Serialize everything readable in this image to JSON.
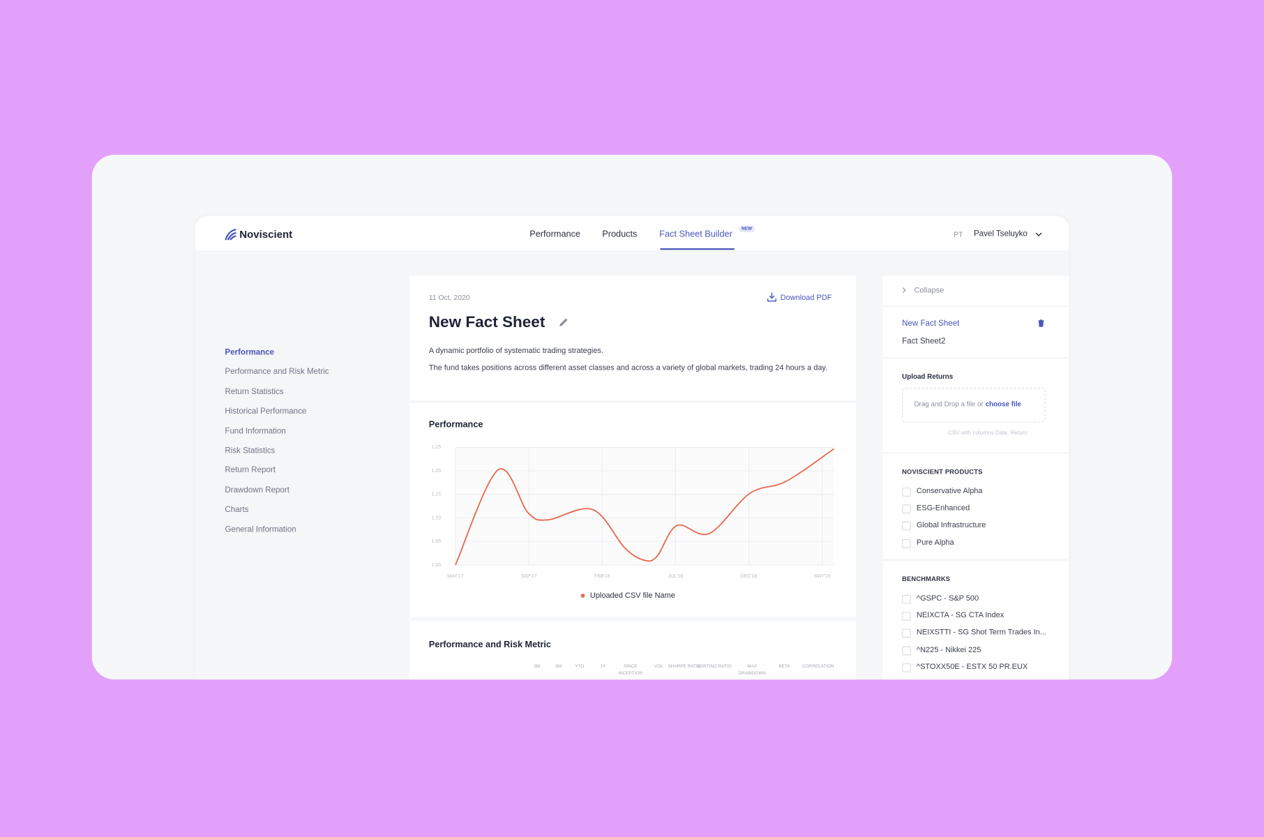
{
  "header": {
    "logo": "Noviscient",
    "nav": [
      "Performance",
      "Products",
      "Fact Sheet Builder"
    ],
    "badge": "NEW",
    "user_initials": "PT",
    "user_name": "Pavel Tseluyko"
  },
  "sidebar": {
    "items": [
      "Performance",
      "Performance and Risk Metric",
      "Return Statistics",
      "Historical Performance",
      "Fund Information",
      "Risk Statistics",
      "Return Report",
      "Drawdown Report",
      "Charts",
      "General Information"
    ]
  },
  "fact_sheet": {
    "date": "11 Oct, 2020",
    "download": "Download PDF",
    "title": "New Fact Sheet",
    "description": [
      "A dynamic portfolio of systematic trading strategies.",
      "The fund takes positions across different asset classes and across a variety of global markets, trading 24 hours a day."
    ]
  },
  "chart_data": {
    "type": "line",
    "title": "Performance",
    "xticks": [
      {
        "value": 0,
        "label": "MAY'17"
      },
      {
        "value": 1,
        "label": "SEP'17"
      },
      {
        "value": 2,
        "label": "FEB'18"
      },
      {
        "value": 3,
        "label": "JUL'18"
      },
      {
        "value": 4,
        "label": "DEC'18"
      },
      {
        "value": 5,
        "label": "MAY'19"
      }
    ],
    "xlim": [
      0,
      5.16
    ],
    "ylim": [
      1,
      1.25
    ],
    "yticks": [
      {
        "value": 1,
        "label": "1.00"
      },
      1.05,
      {
        "value": 1.1,
        "label": "1.10"
      },
      1.15,
      {
        "value": 1.2,
        "label": "1.20"
      },
      1.25
    ],
    "grid": true,
    "series": [
      {
        "name": "Uploaded CSV file Name",
        "color": "#ea6a4f",
        "x": [
          0,
          0.58,
          0.99,
          1.26,
          1.87,
          2.31,
          2.58,
          2.75,
          3.02,
          3.46,
          4.01,
          4.51,
          5.16
        ],
        "values": [
          1.0,
          1.202,
          1.111,
          1.096,
          1.118,
          1.036,
          1.01,
          1.019,
          1.084,
          1.067,
          1.152,
          1.178,
          1.247
        ]
      }
    ]
  },
  "table": {
    "title": "Performance and Risk Metric",
    "columns": [
      "3M",
      "6M",
      "YTD",
      "1Y",
      "SINCE INCEPTION",
      "VOL",
      "SHARPE RATIO",
      "SORTINO RATIO",
      "MAX DRAWDOWN",
      "BETA",
      "CORRELATION"
    ]
  },
  "panel": {
    "collapse": "Collapse",
    "sheets": [
      "New Fact Sheet",
      "Fact Sheet2"
    ],
    "upload": {
      "title": "Upload Returns",
      "drop": "Drag and Drop a file or",
      "link": "choose file",
      "hint": "CSV with columns Date, Return"
    },
    "products": {
      "title": "NOVISCIENT PRODUCTS",
      "items": [
        "Conservative Alpha",
        "ESG-Enhanced",
        "Global Infrastructure",
        "Pure Alpha"
      ]
    },
    "benchmarks": {
      "title": "BENCHMARKS",
      "items": [
        "^GSPC - S&P 500",
        "NEIXCTA - SG CTA Index",
        "NEIXSTTI - SG Shot Term Trades In...",
        "^N225 - Nikkei 225",
        "^STOXX50E - ESTX 50 PR.EUX"
      ]
    }
  }
}
